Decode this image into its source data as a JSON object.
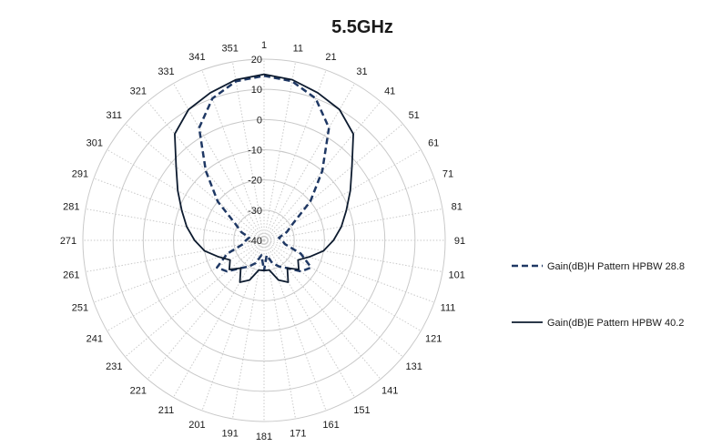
{
  "chart_data": {
    "type": "polar-line",
    "title": "5.5GHz",
    "angle_unit": "degree",
    "angle_start": 1,
    "angle_step": 10,
    "angle_ticks": [
      "1",
      "11",
      "21",
      "31",
      "41",
      "51",
      "61",
      "71",
      "81",
      "91",
      "101",
      "111",
      "121",
      "131",
      "141",
      "151",
      "161",
      "171",
      "181",
      "191",
      "201",
      "211",
      "221",
      "231",
      "241",
      "251",
      "261",
      "271",
      "281",
      "291",
      "301",
      "311",
      "321",
      "331",
      "341",
      "351"
    ],
    "radial_range": [
      -40,
      20
    ],
    "radial_ticks": [
      "20",
      "10",
      "0",
      "-10",
      "-20",
      "-30",
      "-40"
    ],
    "grid": true,
    "legend_position": "right",
    "series": [
      {
        "name": "Gain(dB)H Pattern HPBW 28.8",
        "style": "dashed",
        "color": "#1f3864",
        "angles": [
          0,
          10,
          20,
          30,
          40,
          50,
          60,
          70,
          80,
          90,
          100,
          110,
          120,
          130,
          140,
          150,
          160,
          170,
          180,
          190,
          200,
          210,
          220,
          230,
          240,
          250,
          260,
          270,
          280,
          290,
          300,
          310,
          320,
          330,
          340,
          350
        ],
        "values": [
          14.5,
          13.5,
          10,
          3,
          -10,
          -20,
          -29,
          -32,
          -35,
          -34,
          -33,
          -27,
          -22,
          -24,
          -28,
          -30,
          -32,
          -35,
          -30,
          -35,
          -32,
          -30,
          -28,
          -24,
          -22,
          -27,
          -33,
          -34,
          -35,
          -32,
          -29,
          -20,
          -10,
          3,
          10,
          13.5
        ]
      },
      {
        "name": "Gain(dB)E Pattern HPBW 40.2",
        "style": "solid",
        "color": "#0d1b2f",
        "angles": [
          0,
          10,
          20,
          30,
          40,
          50,
          60,
          70,
          80,
          90,
          100,
          110,
          120,
          130,
          140,
          150,
          160,
          170,
          180,
          190,
          200,
          210,
          220,
          230,
          240,
          250,
          260,
          270,
          280,
          290,
          300,
          310,
          320,
          330,
          340,
          350
        ],
        "values": [
          15,
          14,
          12,
          10,
          6,
          -2,
          -7,
          -11,
          -14,
          -17,
          -20,
          -24,
          -27,
          -25,
          -28,
          -24,
          -26,
          -30,
          -30,
          -30,
          -26,
          -24,
          -28,
          -25,
          -27,
          -24,
          -20,
          -17,
          -14,
          -11,
          -7,
          -2,
          6,
          10,
          12,
          14
        ]
      }
    ]
  }
}
